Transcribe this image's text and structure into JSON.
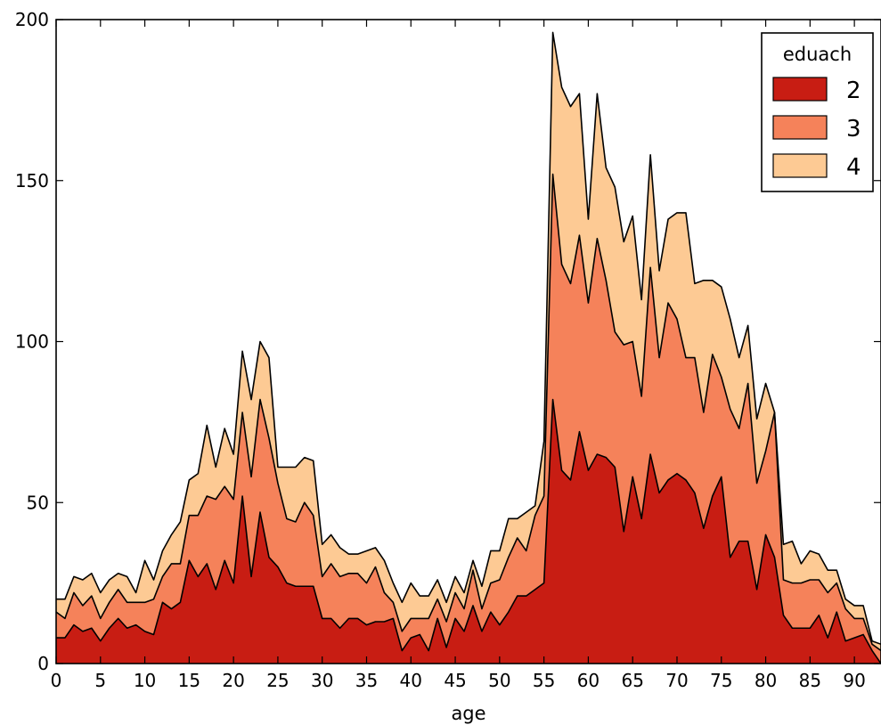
{
  "chart_data": {
    "type": "area",
    "stacked": true,
    "xlabel": "age",
    "ylabel": "",
    "xlim": [
      0,
      93
    ],
    "ylim": [
      0,
      200
    ],
    "xticks": [
      0,
      5,
      10,
      15,
      20,
      25,
      30,
      35,
      40,
      45,
      50,
      55,
      60,
      65,
      70,
      75,
      80,
      85,
      90
    ],
    "yticks": [
      0,
      50,
      100,
      150,
      200
    ],
    "x": [
      0,
      1,
      2,
      3,
      4,
      5,
      6,
      7,
      8,
      9,
      10,
      11,
      12,
      13,
      14,
      15,
      16,
      17,
      18,
      19,
      20,
      21,
      22,
      23,
      24,
      25,
      26,
      27,
      28,
      29,
      30,
      31,
      32,
      33,
      34,
      35,
      36,
      37,
      38,
      39,
      40,
      41,
      42,
      43,
      44,
      45,
      46,
      47,
      48,
      49,
      50,
      51,
      52,
      53,
      54,
      55,
      56,
      57,
      58,
      59,
      60,
      61,
      62,
      63,
      64,
      65,
      66,
      67,
      68,
      69,
      70,
      71,
      72,
      73,
      74,
      75,
      76,
      77,
      78,
      79,
      80,
      81,
      82,
      83,
      84,
      85,
      86,
      87,
      88,
      89,
      90,
      91,
      92,
      93
    ],
    "legend": {
      "title": "eduach",
      "position": "upper-right"
    },
    "series": [
      {
        "name": "2",
        "color": "#c81d13",
        "values": [
          8,
          8,
          12,
          10,
          11,
          7,
          11,
          14,
          11,
          12,
          10,
          9,
          19,
          17,
          19,
          32,
          27,
          31,
          23,
          32,
          25,
          52,
          27,
          47,
          33,
          30,
          25,
          24,
          24,
          24,
          14,
          14,
          11,
          14,
          14,
          12,
          13,
          13,
          14,
          4,
          8,
          9,
          4,
          14,
          5,
          14,
          10,
          18,
          10,
          16,
          12,
          16,
          21,
          21,
          23,
          25,
          82,
          60,
          57,
          72,
          60,
          65,
          64,
          61,
          41,
          58,
          45,
          65,
          53,
          57,
          59,
          57,
          53,
          42,
          52,
          58,
          33,
          38,
          38,
          23,
          40,
          33,
          15,
          11,
          11,
          11,
          15,
          8,
          16,
          7,
          8,
          9,
          4,
          0
        ]
      },
      {
        "name": "3",
        "color": "#f5825a",
        "values": [
          8,
          6,
          10,
          8,
          10,
          7,
          8,
          9,
          8,
          7,
          9,
          11,
          8,
          14,
          12,
          14,
          19,
          21,
          28,
          23,
          26,
          26,
          31,
          35,
          37,
          26,
          20,
          20,
          26,
          22,
          13,
          17,
          16,
          14,
          14,
          13,
          17,
          9,
          5,
          6,
          6,
          5,
          10,
          6,
          8,
          8,
          7,
          11,
          7,
          9,
          14,
          17,
          18,
          14,
          23,
          27,
          70,
          64,
          61,
          61,
          52,
          67,
          55,
          42,
          58,
          42,
          38,
          58,
          42,
          55,
          48,
          38,
          42,
          36,
          44,
          31,
          46,
          35,
          49,
          33,
          26,
          45,
          11,
          14,
          14,
          15,
          11,
          14,
          9,
          10,
          6,
          5,
          2,
          4
        ]
      },
      {
        "name": "4",
        "color": "#fdca94",
        "values": [
          4,
          6,
          5,
          8,
          7,
          8,
          7,
          5,
          8,
          3,
          13,
          6,
          8,
          9,
          13,
          11,
          13,
          22,
          10,
          18,
          14,
          19,
          24,
          18,
          25,
          5,
          16,
          17,
          14,
          17,
          10,
          9,
          9,
          6,
          6,
          10,
          6,
          10,
          6,
          9,
          11,
          7,
          7,
          6,
          6,
          5,
          5,
          3,
          7,
          10,
          9,
          12,
          6,
          12,
          3,
          17,
          44,
          55,
          55,
          44,
          26,
          45,
          35,
          45,
          32,
          39,
          30,
          35,
          27,
          26,
          33,
          45,
          23,
          41,
          23,
          28,
          28,
          22,
          18,
          20,
          21,
          0,
          11,
          13,
          6,
          9,
          8,
          7,
          4,
          3,
          4,
          4,
          1,
          2
        ]
      }
    ]
  }
}
